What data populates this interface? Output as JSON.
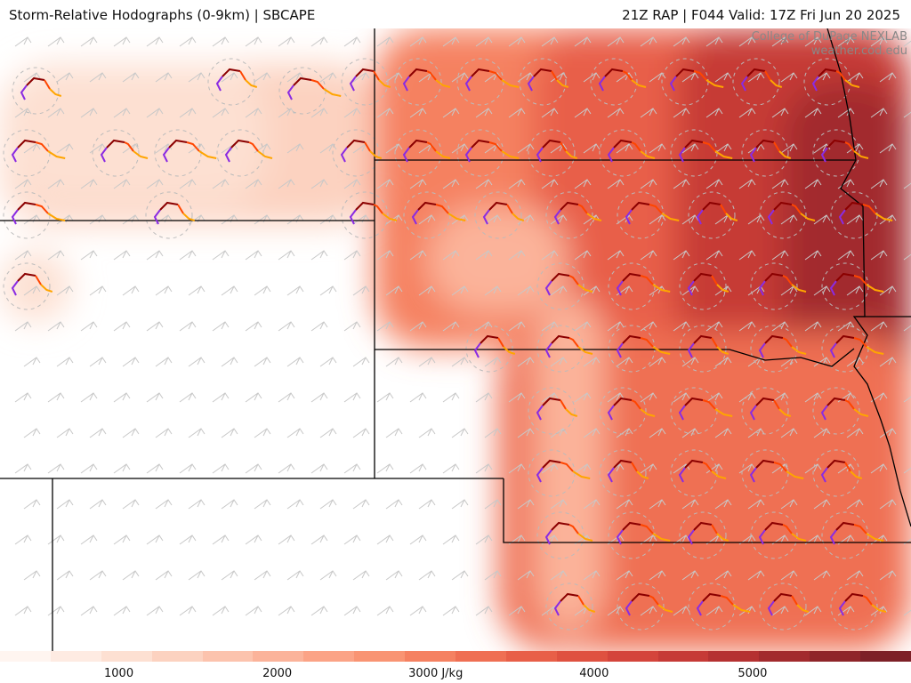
{
  "header": {
    "left_title": "Storm-Relative Hodographs (0-9km) | SBCAPE",
    "right_title": "21Z RAP | F044 Valid: 17Z Fri Jun 20 2025"
  },
  "credit": {
    "line1": "College of DuPage NEXLAB",
    "line2": "weather.cod.edu"
  },
  "colorbar": {
    "unit": "J/kg",
    "ticks": [
      {
        "value": 1000,
        "label": "1000"
      },
      {
        "value": 2000,
        "label": "2000"
      },
      {
        "value": 3000,
        "label": "3000 J/kg"
      },
      {
        "value": 4000,
        "label": "4000"
      },
      {
        "value": 5000,
        "label": "5000"
      }
    ],
    "range": [
      250,
      6000
    ],
    "colors": [
      "#fff5f0",
      "#feebe2",
      "#fde0d2",
      "#fcd2c0",
      "#fcc3ad",
      "#fbb39a",
      "#fba386",
      "#f99473",
      "#f58161",
      "#ef6f53",
      "#e85f48",
      "#df5140",
      "#d4443b",
      "#c63a36",
      "#b53131",
      "#a22a2d",
      "#8f2529",
      "#7d2027"
    ]
  },
  "legend": {
    "hodograph_colors": {
      "0-1km": "#8b0000",
      "1-3km": "#ff4500",
      "3-6km": "#ffa500",
      "6-9km": "#8a2be2"
    }
  }
}
